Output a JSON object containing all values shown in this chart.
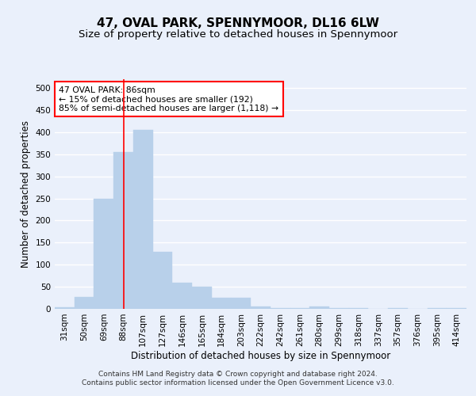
{
  "title": "47, OVAL PARK, SPENNYMOOR, DL16 6LW",
  "subtitle": "Size of property relative to detached houses in Spennymoor",
  "xlabel": "Distribution of detached houses by size in Spennymoor",
  "ylabel": "Number of detached properties",
  "categories": [
    "31sqm",
    "50sqm",
    "69sqm",
    "88sqm",
    "107sqm",
    "127sqm",
    "146sqm",
    "165sqm",
    "184sqm",
    "203sqm",
    "222sqm",
    "242sqm",
    "261sqm",
    "280sqm",
    "299sqm",
    "318sqm",
    "337sqm",
    "357sqm",
    "376sqm",
    "395sqm",
    "414sqm"
  ],
  "values": [
    3,
    27,
    250,
    355,
    405,
    130,
    60,
    50,
    25,
    25,
    5,
    2,
    2,
    5,
    2,
    2,
    0,
    2,
    0,
    2,
    2
  ],
  "bar_color": "#b8d0ea",
  "bar_edge_color": "#b8d0ea",
  "vline_x_index": 3,
  "vline_color": "red",
  "annotation_text": "47 OVAL PARK: 86sqm\n← 15% of detached houses are smaller (192)\n85% of semi-detached houses are larger (1,118) →",
  "annotation_box_color": "white",
  "annotation_box_edge_color": "red",
  "ylim": [
    0,
    520
  ],
  "yticks": [
    0,
    50,
    100,
    150,
    200,
    250,
    300,
    350,
    400,
    450,
    500
  ],
  "footer_text": "Contains HM Land Registry data © Crown copyright and database right 2024.\nContains public sector information licensed under the Open Government Licence v3.0.",
  "background_color": "#eaf0fb",
  "plot_background_color": "#eaf0fb",
  "grid_color": "white",
  "title_fontsize": 11,
  "subtitle_fontsize": 9.5,
  "axis_label_fontsize": 8.5,
  "tick_fontsize": 7.5,
  "footer_fontsize": 6.5
}
